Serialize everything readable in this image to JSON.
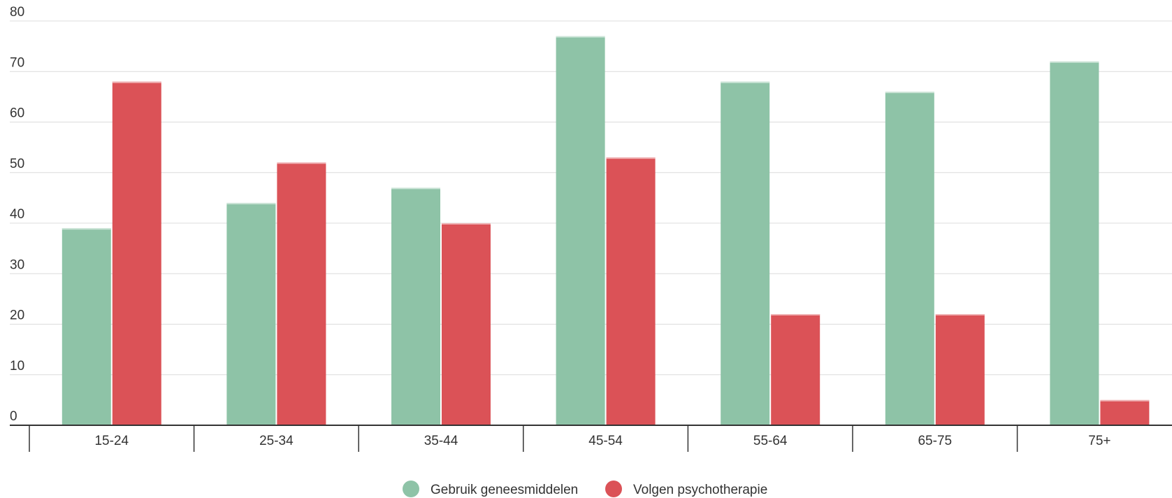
{
  "chart_data": {
    "type": "bar",
    "categories": [
      "15-24",
      "25-34",
      "35-44",
      "45-54",
      "55-64",
      "65-75",
      "75+"
    ],
    "series": [
      {
        "name": "Gebruik geneesmiddelen",
        "color": "#8ec3a7",
        "values": [
          39,
          44,
          47,
          77,
          68,
          66,
          72
        ]
      },
      {
        "name": "Volgen psychotherapie",
        "color": "#db5257",
        "values": [
          68,
          52,
          40,
          53,
          22,
          22,
          5
        ]
      }
    ],
    "ylim": [
      0,
      80
    ],
    "yticks": [
      0,
      10,
      20,
      30,
      40,
      50,
      60,
      70,
      80
    ],
    "grid": true,
    "legend_position": "bottom-center"
  }
}
